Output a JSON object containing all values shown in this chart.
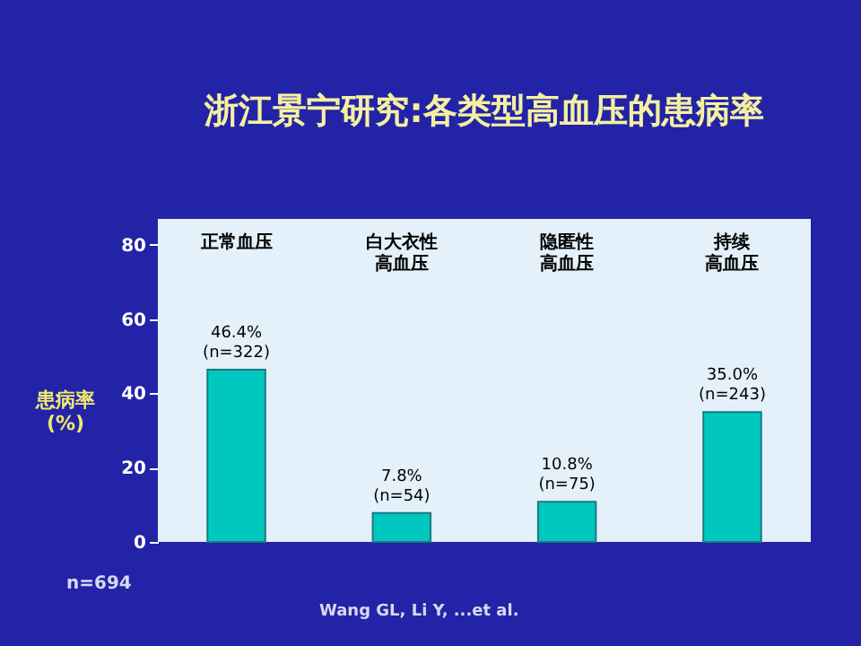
{
  "chart_data": {
    "type": "bar",
    "title": "浙江景宁研究:各类型高血压的患病率",
    "ylabel": "患病率\n(%)",
    "categories": [
      "正常血压",
      "白大衣性高血压",
      "隐匿性高血压",
      "持续高血压"
    ],
    "values": [
      46.4,
      7.8,
      10.8,
      35.0
    ],
    "value_labels": [
      "46.4%\n(n=322)",
      "7.8%\n(n=54)",
      "10.8%\n(n=75)",
      "35.0%\n(n=243)"
    ],
    "color": "#00c8c0",
    "ylim": [
      0,
      87
    ],
    "yticks": [
      0,
      20,
      40,
      60,
      80
    ],
    "grid": false,
    "annotations": [
      "n=694",
      "Wang GL, Li Y, ...et al."
    ]
  }
}
